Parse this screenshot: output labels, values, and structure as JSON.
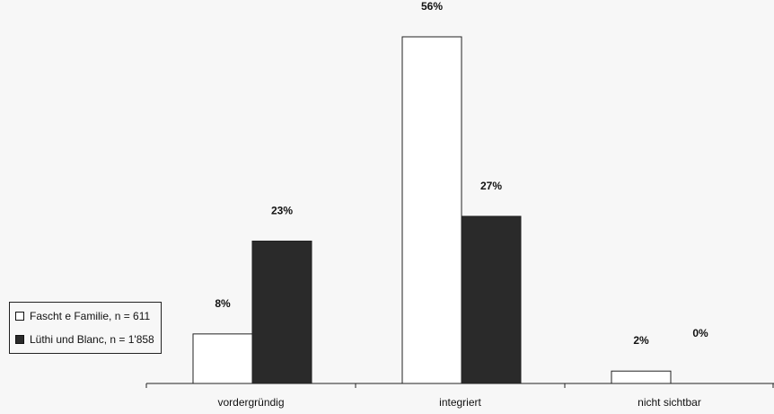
{
  "chart_data": {
    "type": "bar",
    "categories": [
      "vordergründig",
      "integriert",
      "nicht sichtbar"
    ],
    "series": [
      {
        "name": "Fascht e Familie, n = 611",
        "values": [
          8,
          56,
          2
        ],
        "labels": [
          "8%",
          "56%",
          "2%"
        ],
        "color": "#ffffff"
      },
      {
        "name": "Lüthi und Blanc, n = 1'858",
        "values": [
          23,
          27,
          0
        ],
        "labels": [
          "23%",
          "27%",
          "0%"
        ],
        "color": "#2a2a2a"
      }
    ],
    "ylim": [
      0,
      56
    ],
    "grid": false,
    "legend_position": "left"
  }
}
